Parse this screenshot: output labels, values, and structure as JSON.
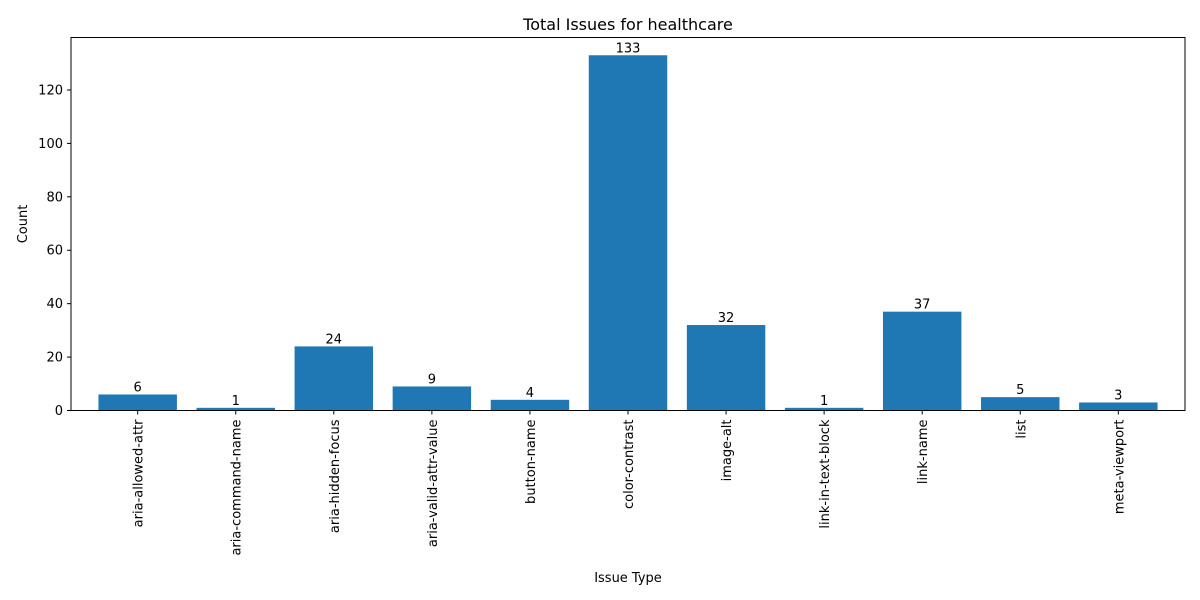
{
  "chart_data": {
    "type": "bar",
    "title": "Total Issues for healthcare",
    "xlabel": "Issue Type",
    "ylabel": "Count",
    "categories": [
      "aria-allowed-attr",
      "aria-command-name",
      "aria-hidden-focus",
      "aria-valid-attr-value",
      "button-name",
      "color-contrast",
      "image-alt",
      "link-in-text-block",
      "link-name",
      "list",
      "meta-viewport"
    ],
    "values": [
      6,
      1,
      24,
      9,
      4,
      133,
      32,
      1,
      37,
      5,
      3
    ],
    "ylim": [
      0,
      139.65
    ],
    "yticks": [
      0,
      20,
      40,
      60,
      80,
      100,
      120
    ],
    "bar_color": "#1f77b4",
    "grid": false,
    "legend": "none",
    "x_tick_rotation": "vertical"
  }
}
